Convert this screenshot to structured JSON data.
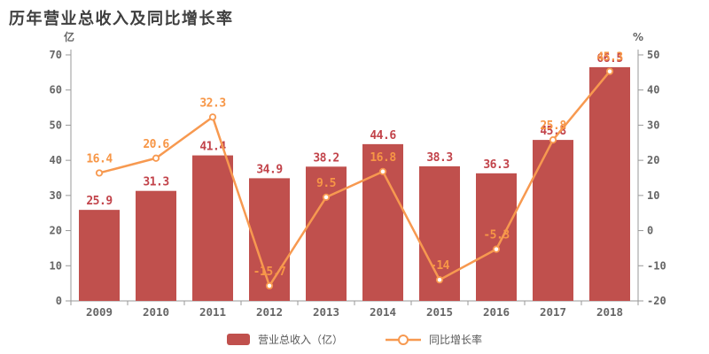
{
  "title": "历年营业总收入及同比增长率",
  "left_axis_unit": "亿",
  "right_axis_unit": "%",
  "legend": {
    "bar_label": "营业总收入（亿）",
    "line_label": "同比增长率"
  },
  "colors": {
    "background": "#ffffff",
    "bar": "#c0504d",
    "bar_label": "#c2434a",
    "line": "#f79950",
    "line_label": "#f79646",
    "marker_fill": "#ffffff",
    "axis": "#999999",
    "tick_text": "#666666",
    "title_text": "#3f3f3f",
    "legend_text": "#595959"
  },
  "chart_data": {
    "type": "bar",
    "subtype": "bar+line dual axis",
    "title": "历年营业总收入及同比增长率",
    "categories": [
      "2009",
      "2010",
      "2011",
      "2012",
      "2013",
      "2014",
      "2015",
      "2016",
      "2017",
      "2018"
    ],
    "series": [
      {
        "name": "营业总收入（亿）",
        "type": "bar",
        "axis": "left",
        "values": [
          25.9,
          31.3,
          41.4,
          34.9,
          38.2,
          44.6,
          38.3,
          36.3,
          45.8,
          66.5
        ],
        "labels": [
          "25.9",
          "31.3",
          "41.4",
          "34.9",
          "38.2",
          "44.6",
          "38.3",
          "36.3",
          "45.8",
          "66.5"
        ]
      },
      {
        "name": "同比增长率",
        "type": "line",
        "axis": "right",
        "values": [
          16.4,
          20.6,
          32.3,
          -15.7,
          9.5,
          16.8,
          -14,
          -5.3,
          25.8,
          45.3
        ],
        "labels": [
          "16.4",
          "20.6",
          "32.3",
          "-15.7",
          "9.5",
          "16.8",
          "-14",
          "-5.3",
          "25.8",
          "45.3"
        ]
      }
    ],
    "left_axis": {
      "min": 0,
      "max": 70,
      "step": 10,
      "unit": "亿"
    },
    "right_axis": {
      "min": -20,
      "max": 50,
      "step": 10,
      "unit": "%"
    },
    "grid": false,
    "legend_position": "bottom"
  }
}
